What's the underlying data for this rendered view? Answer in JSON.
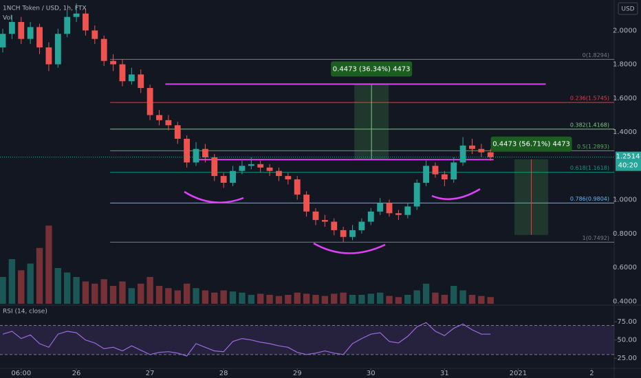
{
  "chart_data": {
    "type": "candlestick",
    "title": "1NCH Token / USD, 1h, FTX",
    "volume_label": "Vol",
    "currency": "USD",
    "up_color": "#26a69a",
    "down_color": "#ef5350",
    "x": [
      0,
      3,
      6,
      9,
      12,
      15,
      18,
      21,
      24,
      27,
      30,
      33,
      36,
      39,
      42,
      45,
      48,
      51,
      54,
      57,
      60,
      63,
      66,
      69,
      72,
      75,
      78,
      81,
      84,
      87,
      90,
      93,
      96,
      99,
      102,
      105,
      108,
      111,
      114,
      117,
      120,
      123,
      126,
      129,
      132,
      135,
      138,
      141,
      144,
      147,
      150,
      153,
      156,
      159
    ],
    "xlim": [
      -0.9,
      199.3
    ],
    "xticks": [
      {
        "value": 6,
        "label": "06:00"
      },
      {
        "value": 24,
        "label": "26"
      },
      {
        "value": 48,
        "label": "27"
      },
      {
        "value": 72,
        "label": "28"
      },
      {
        "value": 96,
        "label": "29"
      },
      {
        "value": 120,
        "label": "30"
      },
      {
        "value": 144,
        "label": "31"
      },
      {
        "value": 168,
        "label": "2021"
      },
      {
        "value": 192,
        "label": "2"
      }
    ],
    "ylim": [
      0.385,
      2.18
    ],
    "yticks": [
      {
        "value": 2,
        "label": "2.0000"
      },
      {
        "value": 1.8,
        "label": "1.8000"
      },
      {
        "value": 1.6,
        "label": "1.6000"
      },
      {
        "value": 1.4,
        "label": "1.4000"
      },
      {
        "value": 1,
        "label": "1.0000"
      },
      {
        "value": 0.8,
        "label": "0.8000"
      },
      {
        "value": 0.6,
        "label": "0.6000"
      },
      {
        "value": 0.4,
        "label": "0.4000"
      }
    ],
    "grid": false,
    "candles": [
      [
        1.9,
        2.01,
        1.87,
        1.98
      ],
      [
        1.98,
        2.09,
        1.95,
        2.05
      ],
      [
        2.05,
        2.08,
        1.92,
        1.95
      ],
      [
        1.95,
        2.05,
        1.92,
        2.02
      ],
      [
        2.02,
        2.04,
        1.86,
        1.9
      ],
      [
        1.9,
        1.93,
        1.76,
        1.8
      ],
      [
        1.8,
        2.01,
        1.78,
        1.98
      ],
      [
        1.98,
        2.12,
        1.96,
        2.08
      ],
      [
        2.08,
        2.16,
        2.05,
        2.1
      ],
      [
        2.1,
        2.13,
        1.97,
        2.0
      ],
      [
        2.0,
        2.03,
        1.92,
        1.95
      ],
      [
        1.95,
        1.97,
        1.79,
        1.82
      ],
      [
        1.82,
        1.86,
        1.76,
        1.8
      ],
      [
        1.8,
        1.83,
        1.67,
        1.7
      ],
      [
        1.7,
        1.78,
        1.68,
        1.74
      ],
      [
        1.74,
        1.77,
        1.63,
        1.66
      ],
      [
        1.66,
        1.68,
        1.47,
        1.5
      ],
      [
        1.5,
        1.53,
        1.44,
        1.47
      ],
      [
        1.47,
        1.5,
        1.41,
        1.44
      ],
      [
        1.44,
        1.46,
        1.33,
        1.36
      ],
      [
        1.36,
        1.38,
        1.19,
        1.22
      ],
      [
        1.22,
        1.34,
        1.2,
        1.3
      ],
      [
        1.3,
        1.33,
        1.22,
        1.25
      ],
      [
        1.25,
        1.27,
        1.11,
        1.14
      ],
      [
        1.14,
        1.16,
        1.07,
        1.1
      ],
      [
        1.1,
        1.2,
        1.08,
        1.17
      ],
      [
        1.17,
        1.23,
        1.15,
        1.2
      ],
      [
        1.2,
        1.25,
        1.18,
        1.21
      ],
      [
        1.21,
        1.23,
        1.16,
        1.19
      ],
      [
        1.19,
        1.21,
        1.14,
        1.17
      ],
      [
        1.17,
        1.19,
        1.11,
        1.14
      ],
      [
        1.14,
        1.16,
        1.09,
        1.12
      ],
      [
        1.12,
        1.14,
        1.0,
        1.03
      ],
      [
        1.03,
        1.05,
        0.9,
        0.93
      ],
      [
        0.93,
        0.95,
        0.85,
        0.88
      ],
      [
        0.88,
        0.91,
        0.84,
        0.87
      ],
      [
        0.87,
        0.89,
        0.79,
        0.82
      ],
      [
        0.82,
        0.84,
        0.75,
        0.78
      ],
      [
        0.78,
        0.85,
        0.76,
        0.82
      ],
      [
        0.82,
        0.89,
        0.8,
        0.87
      ],
      [
        0.87,
        0.95,
        0.85,
        0.93
      ],
      [
        0.93,
        1.01,
        0.91,
        0.98
      ],
      [
        0.98,
        1.0,
        0.9,
        0.92
      ],
      [
        0.92,
        0.94,
        0.88,
        0.91
      ],
      [
        0.91,
        0.98,
        0.89,
        0.96
      ],
      [
        0.96,
        1.12,
        0.94,
        1.1
      ],
      [
        1.1,
        1.23,
        1.08,
        1.2
      ],
      [
        1.2,
        1.22,
        1.13,
        1.15
      ],
      [
        1.15,
        1.17,
        1.08,
        1.12
      ],
      [
        1.12,
        1.25,
        1.1,
        1.22
      ],
      [
        1.22,
        1.37,
        1.2,
        1.32
      ],
      [
        1.32,
        1.36,
        1.27,
        1.3
      ],
      [
        1.3,
        1.33,
        1.25,
        1.28
      ],
      [
        1.28,
        1.3,
        1.23,
        1.2514
      ]
    ],
    "volume": [
      120,
      200,
      150,
      180,
      250,
      350,
      160,
      140,
      120,
      100,
      90,
      110,
      80,
      100,
      70,
      90,
      120,
      80,
      70,
      60,
      90,
      70,
      60,
      50,
      60,
      55,
      50,
      40,
      45,
      40,
      35,
      40,
      50,
      45,
      40,
      35,
      45,
      50,
      40,
      40,
      45,
      50,
      35,
      30,
      40,
      60,
      90,
      50,
      40,
      80,
      60,
      40,
      35,
      30
    ],
    "volume_ylim": [
      0,
      400
    ],
    "countdown": "40:20",
    "fib": [
      {
        "label": "0(1.8294)",
        "value": 1.8294,
        "color": "#787b86"
      },
      {
        "label": "0.236(1.5745)",
        "value": 1.5745,
        "color": "#f23645"
      },
      {
        "label": "0.382(1.4168)",
        "value": 1.4168,
        "color": "#81c784"
      },
      {
        "label": "0.5(1.2893)",
        "value": 1.2893,
        "color": "#4caf50"
      },
      {
        "label": "0.618(1.1618)",
        "value": 1.1618,
        "color": "#089981"
      },
      {
        "label": "0.786(0.9804)",
        "value": 0.9804,
        "color": "#64b5f6"
      },
      {
        "label": "1(0.7492)",
        "value": 0.7492,
        "color": "#787b86"
      }
    ],
    "fib_start": 35,
    "lines": [
      {
        "value": 1.683,
        "x": [
          53,
          177
        ],
        "color": "#e040fb"
      },
      {
        "value": 1.237,
        "x": [
          63,
          160
        ],
        "color": "#e040fb"
      }
    ],
    "measures": [
      {
        "label": "0.4473 (36.34%) 4473",
        "x": [
          114.6,
          125.8
        ],
        "y": [
          1.236,
          1.683
        ]
      },
      {
        "label": "0.4473 (56.71%) 4473",
        "x": [
          166.8,
          177.8
        ],
        "y": [
          0.792,
          1.239
        ]
      }
    ],
    "rsi": {
      "title": "RSI (14, close)",
      "color": "#9c6ade",
      "values": [
        58,
        62,
        52,
        57,
        45,
        40,
        58,
        62,
        60,
        50,
        46,
        38,
        40,
        35,
        42,
        36,
        30,
        33,
        34,
        32,
        28,
        45,
        40,
        35,
        34,
        48,
        52,
        50,
        47,
        45,
        42,
        40,
        33,
        30,
        32,
        35,
        32,
        30,
        45,
        52,
        58,
        60,
        48,
        46,
        55,
        68,
        74,
        62,
        56,
        66,
        72,
        64,
        58,
        58
      ],
      "ylim": [
        12,
        95
      ],
      "yticks": [
        {
          "value": 75,
          "label": "75.00"
        },
        {
          "value": 50,
          "label": "50.00"
        },
        {
          "value": 25,
          "label": "25.00"
        }
      ],
      "bands": [
        30,
        70
      ]
    }
  }
}
